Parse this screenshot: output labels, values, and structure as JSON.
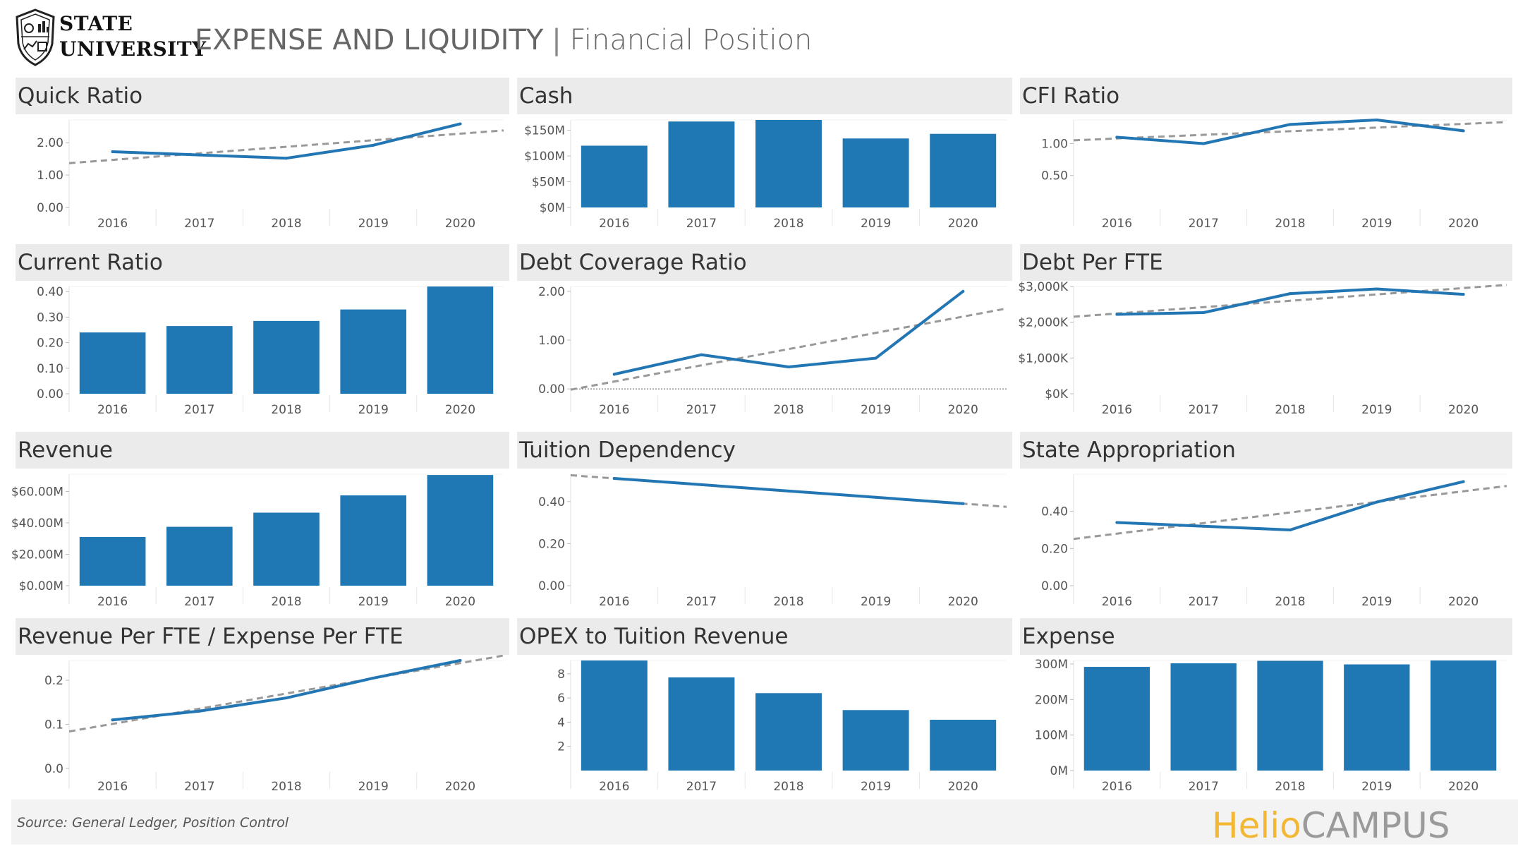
{
  "header": {
    "logo_line1": "STATE",
    "logo_line2": "UNIVERSITY",
    "title_main": "EXPENSE AND LIQUIDITY",
    "title_separator": "|",
    "title_sub": "Financial Position"
  },
  "footer": {
    "source": "Source: General Ledger, Position Control",
    "brand_part1": "Helio",
    "brand_part2": "CAMPUS"
  },
  "colors": {
    "bar": "#1f77b4",
    "line": "#2276b4",
    "trend": "#999999",
    "panel_header": "#ebebeb"
  },
  "chart_data": [
    {
      "id": "quick-ratio",
      "type": "line",
      "title": "Quick Ratio",
      "categories": [
        "2016",
        "2017",
        "2018",
        "2019",
        "2020"
      ],
      "values": [
        1.72,
        1.62,
        1.52,
        1.92,
        2.58
      ],
      "trendline": true,
      "ylim": [
        0,
        2.7
      ],
      "yticks": [
        {
          "v": 0,
          "label": "0.00"
        },
        {
          "v": 1,
          "label": "1.00"
        },
        {
          "v": 2,
          "label": "2.00"
        }
      ],
      "xlabel": "",
      "ylabel": ""
    },
    {
      "id": "cash",
      "type": "bar",
      "title": "Cash",
      "categories": [
        "2016",
        "2017",
        "2018",
        "2019",
        "2020"
      ],
      "values": [
        120,
        167,
        170,
        134,
        143
      ],
      "ylim": [
        0,
        170
      ],
      "yticks": [
        {
          "v": 0,
          "label": "$0M"
        },
        {
          "v": 50,
          "label": "$50M"
        },
        {
          "v": 100,
          "label": "$100M"
        },
        {
          "v": 150,
          "label": "$150M"
        }
      ],
      "xlabel": "",
      "ylabel": ""
    },
    {
      "id": "cfi-ratio",
      "type": "line",
      "title": "CFI Ratio",
      "categories": [
        "2016",
        "2017",
        "2018",
        "2019",
        "2020"
      ],
      "values": [
        1.1,
        1.0,
        1.3,
        1.37,
        1.2
      ],
      "trendline": true,
      "ylim": [
        0,
        1.37
      ],
      "yticks": [
        {
          "v": 0.5,
          "label": "0.50"
        },
        {
          "v": 1,
          "label": "1.00"
        }
      ],
      "xlabel": "",
      "ylabel": ""
    },
    {
      "id": "current-ratio",
      "type": "bar",
      "title": "Current Ratio",
      "categories": [
        "2016",
        "2017",
        "2018",
        "2019",
        "2020"
      ],
      "values": [
        0.24,
        0.265,
        0.285,
        0.33,
        0.42
      ],
      "ylim": [
        0,
        0.42
      ],
      "yticks": [
        {
          "v": 0,
          "label": "0.00"
        },
        {
          "v": 0.1,
          "label": "0.10"
        },
        {
          "v": 0.2,
          "label": "0.20"
        },
        {
          "v": 0.3,
          "label": "0.30"
        },
        {
          "v": 0.4,
          "label": "0.40"
        }
      ],
      "xlabel": "",
      "ylabel": ""
    },
    {
      "id": "debt-coverage-ratio",
      "type": "line",
      "title": "Debt Coverage Ratio",
      "categories": [
        "2016",
        "2017",
        "2018",
        "2019",
        "2020"
      ],
      "values": [
        0.3,
        0.7,
        0.45,
        0.63,
        2.0
      ],
      "trendline": true,
      "zero_line": true,
      "ylim": [
        -0.1,
        2.1
      ],
      "yticks": [
        {
          "v": 0,
          "label": "0.00"
        },
        {
          "v": 1,
          "label": "1.00"
        },
        {
          "v": 2,
          "label": "2.00"
        }
      ],
      "xlabel": "",
      "ylabel": ""
    },
    {
      "id": "debt-per-fte",
      "type": "line",
      "title": "Debt Per FTE",
      "categories": [
        "2016",
        "2017",
        "2018",
        "2019",
        "2020"
      ],
      "values": [
        2220,
        2270,
        2800,
        2930,
        2780
      ],
      "trendline": true,
      "ylim": [
        0,
        3000
      ],
      "yticks": [
        {
          "v": 0,
          "label": "$0K"
        },
        {
          "v": 1000,
          "label": "$1,000K"
        },
        {
          "v": 2000,
          "label": "$2,000K"
        },
        {
          "v": 3000,
          "label": "$3,000K"
        }
      ],
      "xlabel": "",
      "ylabel": ""
    },
    {
      "id": "revenue",
      "type": "bar",
      "title": "Revenue",
      "categories": [
        "2016",
        "2017",
        "2018",
        "2019",
        "2020"
      ],
      "values": [
        31,
        37.5,
        46.5,
        57.5,
        70.5
      ],
      "ylim": [
        0,
        71
      ],
      "yticks": [
        {
          "v": 0,
          "label": "$0.00M"
        },
        {
          "v": 20,
          "label": "$20.00M"
        },
        {
          "v": 40,
          "label": "$40.00M"
        },
        {
          "v": 60,
          "label": "$60.00M"
        }
      ],
      "xlabel": "",
      "ylabel": ""
    },
    {
      "id": "tuition-dependency",
      "type": "line",
      "title": "Tuition Dependency",
      "categories": [
        "2016",
        "2017",
        "2018",
        "2019",
        "2020"
      ],
      "values": [
        0.51,
        0.48,
        0.45,
        0.42,
        0.39
      ],
      "trendline": true,
      "ylim": [
        0,
        0.53
      ],
      "yticks": [
        {
          "v": 0,
          "label": "0.00"
        },
        {
          "v": 0.2,
          "label": "0.20"
        },
        {
          "v": 0.4,
          "label": "0.40"
        }
      ],
      "xlabel": "",
      "ylabel": ""
    },
    {
      "id": "state-appropriation",
      "type": "line",
      "title": "State Appropriation",
      "categories": [
        "2016",
        "2017",
        "2018",
        "2019",
        "2020"
      ],
      "values": [
        0.34,
        0.32,
        0.3,
        0.45,
        0.56
      ],
      "trendline": true,
      "ylim": [
        0,
        0.6
      ],
      "yticks": [
        {
          "v": 0,
          "label": "0.00"
        },
        {
          "v": 0.2,
          "label": "0.20"
        },
        {
          "v": 0.4,
          "label": "0.40"
        }
      ],
      "xlabel": "",
      "ylabel": ""
    },
    {
      "id": "revenue-per-fte-expense-per-fte",
      "type": "line",
      "title": "Revenue Per FTE / Expense Per FTE",
      "categories": [
        "2016",
        "2017",
        "2018",
        "2019",
        "2020"
      ],
      "values": [
        0.11,
        0.13,
        0.16,
        0.205,
        0.245
      ],
      "trendline": true,
      "ylim": [
        -0.005,
        0.245
      ],
      "yticks": [
        {
          "v": 0,
          "label": "0.0"
        },
        {
          "v": 0.1,
          "label": "0.1"
        },
        {
          "v": 0.2,
          "label": "0.2"
        }
      ],
      "xlabel": "",
      "ylabel": ""
    },
    {
      "id": "opex-to-tuition-revenue",
      "type": "bar",
      "title": "OPEX to Tuition Revenue",
      "categories": [
        "2016",
        "2017",
        "2018",
        "2019",
        "2020"
      ],
      "values": [
        9.1,
        7.7,
        6.4,
        5.0,
        4.2
      ],
      "ylim": [
        0,
        9.1
      ],
      "yticks": [
        {
          "v": 2,
          "label": "2"
        },
        {
          "v": 4,
          "label": "4"
        },
        {
          "v": 6,
          "label": "6"
        },
        {
          "v": 8,
          "label": "8"
        }
      ],
      "xlabel": "",
      "ylabel": ""
    },
    {
      "id": "expense",
      "type": "bar",
      "title": "Expense",
      "categories": [
        "2016",
        "2017",
        "2018",
        "2019",
        "2020"
      ],
      "values": [
        292,
        302,
        309,
        299,
        310
      ],
      "ylim": [
        0,
        310
      ],
      "yticks": [
        {
          "v": 0,
          "label": "0M"
        },
        {
          "v": 100,
          "label": "100M"
        },
        {
          "v": 200,
          "label": "200M"
        },
        {
          "v": 300,
          "label": "300M"
        }
      ],
      "xlabel": "",
      "ylabel": ""
    }
  ]
}
